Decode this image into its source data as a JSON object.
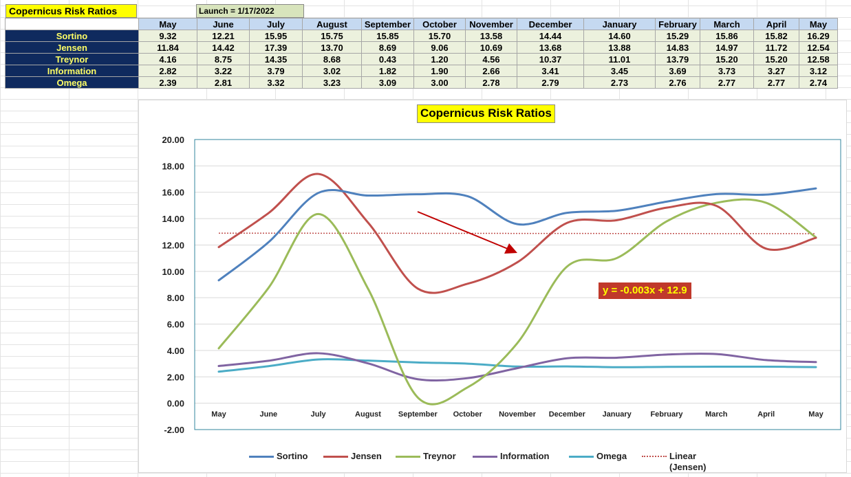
{
  "sheet": {
    "title": "Copernicus Risk Ratios",
    "launch": "Launch = 1/17/2022"
  },
  "table": {
    "months": [
      "May",
      "June",
      "July",
      "August",
      "September",
      "October",
      "November",
      "December",
      "January",
      "February",
      "March",
      "April",
      "May"
    ],
    "rows": [
      {
        "label": "Sortino",
        "values": [
          "9.32",
          "12.21",
          "15.95",
          "15.75",
          "15.85",
          "15.70",
          "13.58",
          "14.44",
          "14.60",
          "15.29",
          "15.86",
          "15.82",
          "16.29"
        ]
      },
      {
        "label": "Jensen",
        "values": [
          "11.84",
          "14.42",
          "17.39",
          "13.70",
          "8.69",
          "9.06",
          "10.69",
          "13.68",
          "13.88",
          "14.83",
          "14.97",
          "11.72",
          "12.54"
        ]
      },
      {
        "label": "Treynor",
        "values": [
          "4.16",
          "8.75",
          "14.35",
          "8.68",
          "0.43",
          "1.20",
          "4.56",
          "10.37",
          "11.01",
          "13.79",
          "15.20",
          "15.20",
          "12.58"
        ]
      },
      {
        "label": "Information",
        "values": [
          "2.82",
          "3.22",
          "3.79",
          "3.02",
          "1.82",
          "1.90",
          "2.66",
          "3.41",
          "3.45",
          "3.69",
          "3.73",
          "3.27",
          "3.12"
        ]
      },
      {
        "label": "Omega",
        "values": [
          "2.39",
          "2.81",
          "3.32",
          "3.23",
          "3.09",
          "3.00",
          "2.78",
          "2.79",
          "2.73",
          "2.76",
          "2.77",
          "2.77",
          "2.74"
        ]
      }
    ]
  },
  "chart": {
    "title": "Copernicus Risk Ratios",
    "equation": "y = -0.003x + 12.9",
    "legend": [
      "Sortino",
      "Jensen",
      "Treynor",
      "Information",
      "Omega",
      "Linear (Jensen)"
    ]
  },
  "chart_data": {
    "type": "line",
    "title": "Copernicus Risk Ratios",
    "categories": [
      "May",
      "June",
      "July",
      "August",
      "September",
      "October",
      "November",
      "December",
      "January",
      "February",
      "March",
      "April",
      "May"
    ],
    "ylim": [
      -2,
      20
    ],
    "y_ticks": [
      "20.00",
      "18.00",
      "16.00",
      "14.00",
      "12.00",
      "10.00",
      "8.00",
      "6.00",
      "4.00",
      "2.00",
      "0.00",
      "-2.00"
    ],
    "grid": true,
    "legend_position": "bottom",
    "series": [
      {
        "name": "Sortino",
        "color": "#4f81bd",
        "values": [
          9.32,
          12.21,
          15.95,
          15.75,
          15.85,
          15.7,
          13.58,
          14.44,
          14.6,
          15.29,
          15.86,
          15.82,
          16.29
        ]
      },
      {
        "name": "Jensen",
        "color": "#c0504d",
        "values": [
          11.84,
          14.42,
          17.39,
          13.7,
          8.69,
          9.06,
          10.69,
          13.68,
          13.88,
          14.83,
          14.97,
          11.72,
          12.54
        ]
      },
      {
        "name": "Treynor",
        "color": "#9bbb59",
        "values": [
          4.16,
          8.75,
          14.35,
          8.68,
          0.43,
          1.2,
          4.56,
          10.37,
          11.01,
          13.79,
          15.2,
          15.2,
          12.58
        ]
      },
      {
        "name": "Information",
        "color": "#8064a2",
        "values": [
          2.82,
          3.22,
          3.79,
          3.02,
          1.82,
          1.9,
          2.66,
          3.41,
          3.45,
          3.69,
          3.73,
          3.27,
          3.12
        ]
      },
      {
        "name": "Omega",
        "color": "#4bacc6",
        "values": [
          2.39,
          2.81,
          3.32,
          3.23,
          3.09,
          3.0,
          2.78,
          2.79,
          2.73,
          2.76,
          2.77,
          2.77,
          2.74
        ]
      }
    ],
    "trendline": {
      "name": "Linear (Jensen)",
      "color": "#c0504d",
      "start": 12.9,
      "end": 12.86
    },
    "annotation_arrow_color": "#c00000"
  }
}
